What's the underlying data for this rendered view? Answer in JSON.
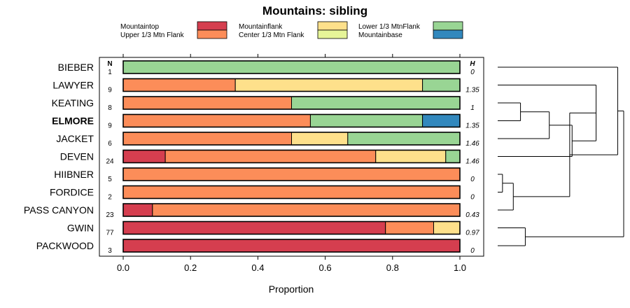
{
  "chart_data": {
    "type": "bar",
    "orientation": "horizontal",
    "stacked": true,
    "title": "Mountains: sibling",
    "xlabel": "Proportion",
    "xlim": [
      0,
      1
    ],
    "xticks": [
      "0.0",
      "0.2",
      "0.4",
      "0.6",
      "0.8",
      "1.0"
    ],
    "xtick_values": [
      0,
      0.2,
      0.4,
      0.6,
      0.8,
      1.0
    ],
    "n_header": "N",
    "h_header": "H",
    "legend": [
      {
        "name": "Mountaintop",
        "color": "#d53e4f"
      },
      {
        "name": "Upper 1/3 Mtn Flank",
        "color": "#fc8d59"
      },
      {
        "name": "Mountainflank",
        "color": "#fee08b"
      },
      {
        "name": "Center 1/3 Mtn Flank",
        "color": "#e6f598"
      },
      {
        "name": "Lower 1/3 MtnFlank",
        "color": "#99d594"
      },
      {
        "name": "Mountainbase",
        "color": "#3288bd"
      }
    ],
    "rows": [
      {
        "label": "BIEBER",
        "bold": false,
        "n": "1",
        "h": "0",
        "values": [
          0,
          0,
          0,
          0,
          1.0,
          0
        ]
      },
      {
        "label": "LAWYER",
        "bold": false,
        "n": "9",
        "h": "1.35",
        "values": [
          0,
          0.333,
          0.556,
          0,
          0.111,
          0
        ]
      },
      {
        "label": "KEATING",
        "bold": false,
        "n": "8",
        "h": "1",
        "values": [
          0,
          0.5,
          0,
          0,
          0.5,
          0
        ]
      },
      {
        "label": "ELMORE",
        "bold": true,
        "n": "9",
        "h": "1.35",
        "values": [
          0,
          0.556,
          0,
          0,
          0.333,
          0.111
        ]
      },
      {
        "label": "JACKET",
        "bold": false,
        "n": "6",
        "h": "1.46",
        "values": [
          0,
          0.5,
          0.167,
          0,
          0.333,
          0
        ]
      },
      {
        "label": "DEVEN",
        "bold": false,
        "n": "24",
        "h": "1.46",
        "values": [
          0.125,
          0.625,
          0.208,
          0,
          0.042,
          0
        ]
      },
      {
        "label": "HIIBNER",
        "bold": false,
        "n": "5",
        "h": "0",
        "values": [
          0,
          1.0,
          0,
          0,
          0,
          0
        ]
      },
      {
        "label": "FORDICE",
        "bold": false,
        "n": "2",
        "h": "0",
        "values": [
          0,
          1.0,
          0,
          0,
          0,
          0
        ]
      },
      {
        "label": "PASS CANYON",
        "bold": false,
        "n": "23",
        "h": "0.43",
        "values": [
          0.087,
          0.913,
          0,
          0,
          0,
          0
        ]
      },
      {
        "label": "GWIN",
        "bold": false,
        "n": "77",
        "h": "0.97",
        "values": [
          0.779,
          0.143,
          0.078,
          0,
          0,
          0
        ]
      },
      {
        "label": "PACKWOOD",
        "bold": false,
        "n": "3",
        "h": "0",
        "values": [
          1.0,
          0,
          0,
          0,
          0,
          0
        ]
      }
    ],
    "dendrogram": {
      "leaf_order": [
        "BIEBER",
        "LAWYER",
        "KEATING",
        "ELMORE",
        "JACKET",
        "DEVEN",
        "HIIBNER",
        "FORDICE",
        "PASS CANYON",
        "GWIN",
        "PACKWOOD"
      ],
      "merges": [
        {
          "a": "KEATING",
          "b": "ELMORE",
          "height": 0.19
        },
        {
          "a": "HIIBNER",
          "b": "FORDICE",
          "height": 0.04
        },
        {
          "a": "@1",
          "b": "PASS CANYON",
          "height": 0.13
        },
        {
          "a": "@0",
          "b": "JACKET",
          "height": 0.43
        },
        {
          "a": "@3",
          "b": "DEVEN",
          "height": 0.62
        },
        {
          "a": "LAWYER",
          "b": "@4",
          "height": 0.82
        },
        {
          "a": "@5",
          "b": "@2",
          "height": 0.6
        },
        {
          "a": "GWIN",
          "b": "PACKWOOD",
          "height": 0.23
        },
        {
          "a": "BIEBER",
          "b": "@6",
          "height": 1.0
        },
        {
          "a": "@8",
          "b": "@7",
          "height": 1.05
        }
      ]
    }
  }
}
